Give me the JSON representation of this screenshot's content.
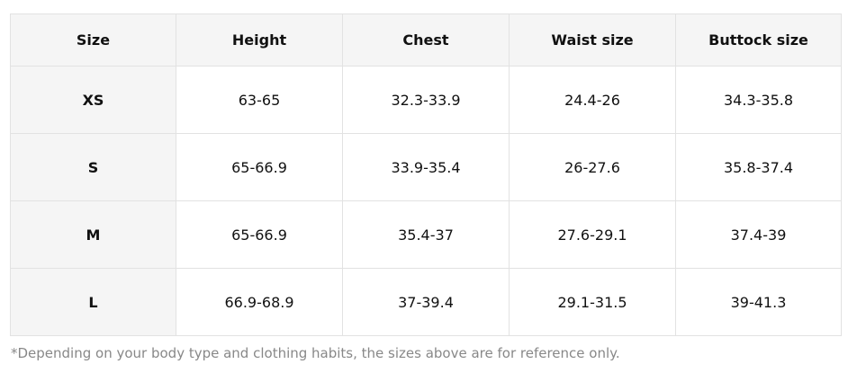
{
  "table": {
    "header": [
      "Size",
      "Height",
      "Chest",
      "Waist size",
      "Buttock size"
    ],
    "rows": [
      [
        "XS",
        "63-65",
        "32.3-33.9",
        "24.4-26",
        "34.3-35.8"
      ],
      [
        "S",
        "65-66.9",
        "33.9-35.4",
        "26-27.6",
        "35.8-37.4"
      ],
      [
        "M",
        "65-66.9",
        "35.4-37",
        "27.6-29.1",
        "37.4-39"
      ],
      [
        "L",
        "66.9-68.9",
        "37-39.4",
        "29.1-31.5",
        "39-41.3"
      ]
    ]
  },
  "footnote": "*Depending on your body type and clothing habits, the sizes above are for reference only."
}
